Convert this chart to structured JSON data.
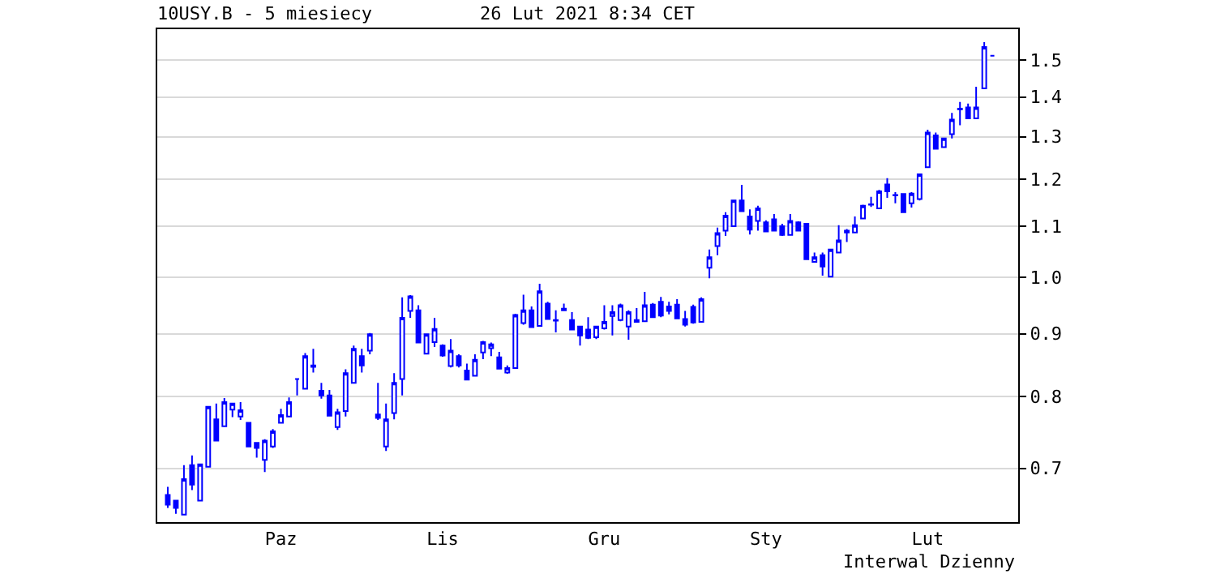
{
  "chart_data": {
    "type": "candlestick",
    "title": "10USY.B - 5 miesiecy",
    "subtitle": "26 Lut 2021 8:34 CET",
    "annotations": [
      "Interwal Dzienny"
    ],
    "categories": [
      null,
      null,
      null,
      null,
      null,
      null,
      null,
      null,
      null,
      null,
      null,
      null,
      null,
      null,
      "Paz",
      null,
      null,
      null,
      null,
      null,
      null,
      null,
      null,
      null,
      null,
      null,
      null,
      null,
      null,
      null,
      null,
      null,
      null,
      null,
      "Lis",
      null,
      null,
      null,
      null,
      null,
      null,
      null,
      null,
      null,
      null,
      null,
      null,
      null,
      null,
      null,
      null,
      null,
      null,
      null,
      "Gru",
      null,
      null,
      null,
      null,
      null,
      null,
      null,
      null,
      null,
      null,
      null,
      null,
      null,
      null,
      null,
      null,
      null,
      null,
      null,
      "Sty",
      null,
      null,
      null,
      null,
      null,
      null,
      null,
      null,
      null,
      null,
      null,
      null,
      null,
      null,
      null,
      null,
      null,
      null,
      null,
      "Lut",
      null,
      null,
      null,
      null,
      null,
      null,
      null,
      null
    ],
    "series": [
      {
        "color": "#0000ff",
        "ohlc": [
          [
            0.666,
            0.676,
            0.65,
            0.654
          ],
          [
            0.659,
            0.659,
            0.643,
            0.65
          ],
          [
            0.642,
            0.704,
            0.642,
            0.686
          ],
          [
            0.704,
            0.717,
            0.672,
            0.679
          ],
          [
            0.659,
            0.705,
            0.659,
            0.705
          ],
          [
            0.702,
            0.785,
            0.702,
            0.785
          ],
          [
            0.767,
            0.79,
            0.737,
            0.737
          ],
          [
            0.757,
            0.798,
            0.757,
            0.792
          ],
          [
            0.781,
            0.79,
            0.77,
            0.79
          ],
          [
            0.771,
            0.792,
            0.766,
            0.78
          ],
          [
            0.762,
            0.762,
            0.729,
            0.729
          ],
          [
            0.734,
            0.734,
            0.714,
            0.727
          ],
          [
            0.711,
            0.739,
            0.695,
            0.737
          ],
          [
            0.729,
            0.753,
            0.727,
            0.75
          ],
          [
            0.762,
            0.782,
            0.762,
            0.773
          ],
          [
            0.771,
            0.799,
            0.771,
            0.792
          ],
          [
            0.827,
            0.827,
            0.802,
            0.827
          ],
          [
            0.812,
            0.868,
            0.812,
            0.863
          ],
          [
            0.848,
            0.875,
            0.837,
            0.846
          ],
          [
            0.809,
            0.821,
            0.797,
            0.802
          ],
          [
            0.802,
            0.81,
            0.772,
            0.772
          ],
          [
            0.756,
            0.782,
            0.752,
            0.777
          ],
          [
            0.779,
            0.842,
            0.771,
            0.836
          ],
          [
            0.821,
            0.88,
            0.821,
            0.875
          ],
          [
            0.863,
            0.875,
            0.837,
            0.848
          ],
          [
            0.872,
            0.901,
            0.866,
            0.899
          ],
          [
            0.774,
            0.821,
            0.766,
            0.769
          ],
          [
            0.729,
            0.79,
            0.723,
            0.767
          ],
          [
            0.776,
            0.836,
            0.767,
            0.821
          ],
          [
            0.827,
            0.963,
            0.802,
            0.927
          ],
          [
            0.939,
            0.967,
            0.927,
            0.965
          ],
          [
            0.94,
            0.949,
            0.885,
            0.885
          ],
          [
            0.867,
            0.899,
            0.867,
            0.899
          ],
          [
            0.886,
            0.927,
            0.878,
            0.908
          ],
          [
            0.88,
            0.882,
            0.862,
            0.864
          ],
          [
            0.847,
            0.891,
            0.845,
            0.872
          ],
          [
            0.863,
            0.866,
            0.845,
            0.848
          ],
          [
            0.84,
            0.851,
            0.826,
            0.826
          ],
          [
            0.832,
            0.866,
            0.832,
            0.857
          ],
          [
            0.869,
            0.888,
            0.858,
            0.886
          ],
          [
            0.876,
            0.885,
            0.863,
            0.882
          ],
          [
            0.861,
            0.87,
            0.843,
            0.843
          ],
          [
            0.837,
            0.848,
            0.835,
            0.844
          ],
          [
            0.844,
            0.934,
            0.844,
            0.932
          ],
          [
            0.918,
            0.968,
            0.915,
            0.94
          ],
          [
            0.94,
            0.947,
            0.911,
            0.911
          ],
          [
            0.913,
            0.988,
            0.913,
            0.974
          ],
          [
            0.952,
            0.955,
            0.925,
            0.925
          ],
          [
            0.923,
            0.94,
            0.902,
            0.922
          ],
          [
            0.943,
            0.952,
            0.939,
            0.94
          ],
          [
            0.923,
            0.937,
            0.907,
            0.907
          ],
          [
            0.912,
            0.912,
            0.88,
            0.897
          ],
          [
            0.907,
            0.928,
            0.891,
            0.893
          ],
          [
            0.894,
            0.912,
            0.891,
            0.912
          ],
          [
            0.909,
            0.949,
            0.907,
            0.92
          ],
          [
            0.93,
            0.949,
            0.897,
            0.937
          ],
          [
            0.923,
            0.952,
            0.921,
            0.949
          ],
          [
            0.912,
            0.94,
            0.89,
            0.937
          ],
          [
            0.923,
            0.944,
            0.92,
            0.92
          ],
          [
            0.921,
            0.973,
            0.921,
            0.949
          ],
          [
            0.95,
            0.953,
            0.928,
            0.928
          ],
          [
            0.955,
            0.964,
            0.928,
            0.931
          ],
          [
            0.947,
            0.955,
            0.933,
            0.939
          ],
          [
            0.95,
            0.96,
            0.926,
            0.926
          ],
          [
            0.925,
            0.939,
            0.912,
            0.915
          ],
          [
            0.946,
            0.95,
            0.917,
            0.919
          ],
          [
            0.92,
            0.963,
            0.92,
            0.96
          ],
          [
            1.018,
            1.053,
            0.998,
            1.038
          ],
          [
            1.06,
            1.097,
            1.042,
            1.086
          ],
          [
            1.091,
            1.129,
            1.08,
            1.122
          ],
          [
            1.1,
            1.154,
            1.1,
            1.154
          ],
          [
            1.154,
            1.188,
            1.131,
            1.131
          ],
          [
            1.12,
            1.135,
            1.083,
            1.093
          ],
          [
            1.111,
            1.143,
            1.091,
            1.137
          ],
          [
            1.108,
            1.112,
            1.089,
            1.089
          ],
          [
            1.114,
            1.125,
            1.091,
            1.091
          ],
          [
            1.1,
            1.105,
            1.08,
            1.082
          ],
          [
            1.082,
            1.125,
            1.082,
            1.111
          ],
          [
            1.108,
            1.11,
            1.091,
            1.091
          ],
          [
            1.105,
            1.105,
            1.034,
            1.034
          ],
          [
            1.029,
            1.047,
            1.029,
            1.038
          ],
          [
            1.042,
            1.047,
            1.003,
            1.02
          ],
          [
            1.001,
            1.053,
            1.001,
            1.053
          ],
          [
            1.047,
            1.102,
            1.047,
            1.071
          ],
          [
            1.091,
            1.094,
            1.068,
            1.087
          ],
          [
            1.087,
            1.12,
            1.087,
            1.102
          ],
          [
            1.116,
            1.145,
            1.116,
            1.143
          ],
          [
            1.145,
            1.162,
            1.14,
            1.146
          ],
          [
            1.137,
            1.177,
            1.137,
            1.174
          ],
          [
            1.189,
            1.203,
            1.16,
            1.174
          ],
          [
            1.166,
            1.172,
            1.148,
            1.165
          ],
          [
            1.168,
            1.168,
            1.129,
            1.129
          ],
          [
            1.148,
            1.172,
            1.139,
            1.169
          ],
          [
            1.157,
            1.212,
            1.154,
            1.212
          ],
          [
            1.228,
            1.317,
            1.228,
            1.31
          ],
          [
            1.303,
            1.31,
            1.271,
            1.271
          ],
          [
            1.275,
            1.296,
            1.275,
            1.296
          ],
          [
            1.306,
            1.359,
            1.296,
            1.342
          ],
          [
            1.37,
            1.387,
            1.328,
            1.368
          ],
          [
            1.373,
            1.383,
            1.345,
            1.345
          ],
          [
            1.345,
            1.427,
            1.345,
            1.373
          ],
          [
            1.423,
            1.551,
            1.423,
            1.537
          ],
          [
            1.512,
            1.512,
            1.512,
            1.512
          ]
        ]
      }
    ],
    "ylim": [
      0.633,
      1.589
    ],
    "yticks": [
      0.7,
      0.8,
      0.9,
      {
        "value": 1,
        "label": "1.0"
      },
      1.1,
      1.2,
      1.3,
      1.4,
      1.5
    ],
    "log": true,
    "grid": "y"
  }
}
